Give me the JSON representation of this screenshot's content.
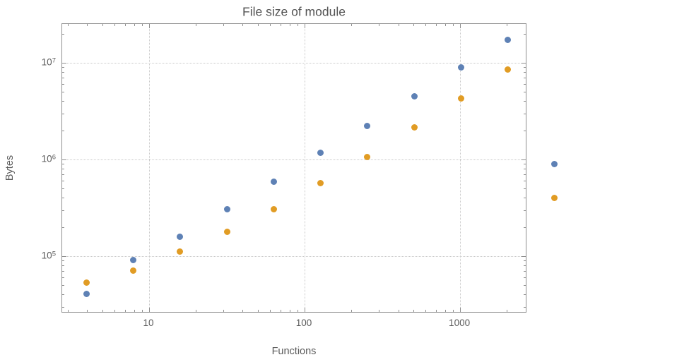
{
  "chart_data": {
    "type": "scatter",
    "title": "File size of module",
    "xlabel": "Functions",
    "ylabel": "Bytes",
    "x_scale": "log",
    "y_scale": "log",
    "xlim": [
      2.76,
      2700
    ],
    "ylim": [
      25600,
      25200000
    ],
    "grid": "dotted-major-lines",
    "legend": "none",
    "frame_color": "#8f8f8f",
    "grid_color": "#c9c9c9",
    "text_color": "#5a5a5a",
    "x": [
      4,
      8,
      16,
      32,
      64,
      128,
      256,
      512,
      1024,
      2048,
      4096
    ],
    "series": [
      {
        "name": "blue",
        "color": "#5e81b5",
        "values": [
          40000,
          90000,
          155000,
          300000,
          580000,
          1150000,
          2200000,
          4400000,
          8800000,
          17000000,
          880000
        ]
      },
      {
        "name": "orange",
        "color": "#e19c24",
        "values": [
          52000,
          70000,
          110000,
          175000,
          300000,
          560000,
          1050000,
          2100000,
          4200000,
          8400000,
          390000
        ]
      }
    ],
    "x_ticks": [
      {
        "value": 10,
        "label": "10"
      },
      {
        "value": 100,
        "label": "100"
      },
      {
        "value": 1000,
        "label": "1000"
      }
    ],
    "y_ticks": [
      {
        "value": 100000,
        "base": "10",
        "exp": "5"
      },
      {
        "value": 1000000,
        "base": "10",
        "exp": "6"
      },
      {
        "value": 10000000,
        "base": "10",
        "exp": "7"
      }
    ]
  }
}
